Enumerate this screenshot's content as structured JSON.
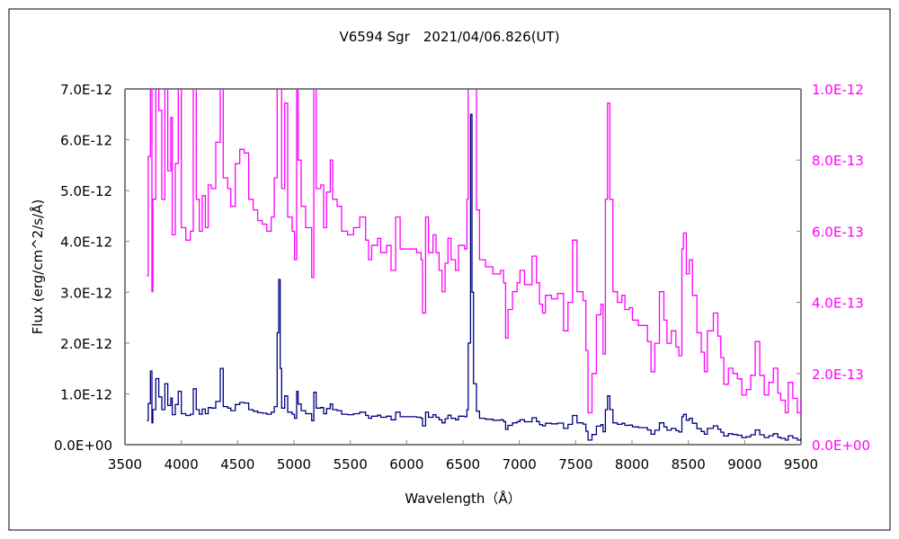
{
  "chart_data": {
    "type": "line",
    "title": "V6594 Sgr　2021/04/06.826(UT)",
    "xlabel": "Wavelength（Å）",
    "ylabel": "Flux (erg/cm^2/s/Å)",
    "xlim": [
      3500,
      9500
    ],
    "ylim_left": [
      0,
      7e-12
    ],
    "ylim_right": [
      0,
      1e-12
    ],
    "x_tick_labels": [
      "3500",
      "4000",
      "4500",
      "5000",
      "5500",
      "6000",
      "6500",
      "7000",
      "7500",
      "8000",
      "8500",
      "9000",
      "9500"
    ],
    "y_left_tick_labels": [
      "0.0E+00",
      "1.0E-12",
      "2.0E-12",
      "3.0E-12",
      "4.0E-12",
      "5.0E-12",
      "6.0E-12",
      "7.0E-12"
    ],
    "y_right_tick_labels": [
      "0.0E+00",
      "2.0E-13",
      "4.0E-13",
      "6.0E-13",
      "8.0E-13",
      "1.0E-12"
    ],
    "grid": false,
    "legend": "none",
    "colors": {
      "left_axis_series": "#000080",
      "right_axis_series": "#ff00ff",
      "right_axis_labels": "#ff00ff",
      "frame": "#808080"
    },
    "series": [
      {
        "axis": "left",
        "color": "#000080"
      },
      {
        "axis": "right",
        "color": "#ff00ff"
      }
    ],
    "x": [
      3694,
      3707,
      3726,
      3739,
      3747,
      3774,
      3800,
      3827,
      3854,
      3880,
      3907,
      3920,
      3947,
      3973,
      4000,
      4040,
      4080,
      4106,
      4133,
      4160,
      4186,
      4213,
      4239,
      4266,
      4306,
      4346,
      4372,
      4412,
      4439,
      4479,
      4519,
      4559,
      4598,
      4638,
      4678,
      4718,
      4758,
      4798,
      4825,
      4851,
      4864,
      4878,
      4891,
      4918,
      4944,
      4984,
      5005,
      5024,
      5037,
      5064,
      5104,
      5144,
      5157,
      5176,
      5197,
      5237,
      5263,
      5290,
      5322,
      5343,
      5383,
      5423,
      5476,
      5529,
      5583,
      5636,
      5662,
      5689,
      5742,
      5769,
      5822,
      5862,
      5902,
      5942,
      5982,
      6035,
      6088,
      6128,
      6141,
      6168,
      6194,
      6234,
      6261,
      6288,
      6314,
      6341,
      6367,
      6394,
      6434,
      6460,
      6514,
      6535,
      6546,
      6567,
      6580,
      6593,
      6620,
      6647,
      6700,
      6766,
      6780,
      6833,
      6860,
      6878,
      6900,
      6940,
      6980,
      7006,
      7046,
      7086,
      7113,
      7152,
      7179,
      7206,
      7232,
      7285,
      7339,
      7392,
      7432,
      7472,
      7512,
      7565,
      7591,
      7610,
      7645,
      7684,
      7724,
      7743,
      7764,
      7783,
      7804,
      7831,
      7871,
      7911,
      7937,
      7977,
      8004,
      8057,
      8110,
      8137,
      8169,
      8203,
      8243,
      8283,
      8310,
      8349,
      8389,
      8416,
      8443,
      8456,
      8482,
      8509,
      8536,
      8576,
      8615,
      8642,
      8669,
      8722,
      8762,
      8788,
      8815,
      8855,
      8895,
      8935,
      8975,
      9014,
      9054,
      9094,
      9134,
      9174,
      9214,
      9254,
      9294,
      9320,
      9360,
      9387,
      9427,
      9467,
      9500
    ],
    "y": [
      4.75e-13,
      8.1e-13,
      1.45e-12,
      4.3e-13,
      6.9e-13,
      1.3e-12,
      9.4e-13,
      6.9e-13,
      1.2e-12,
      7.7e-13,
      9.2e-13,
      5.9e-13,
      7.9e-13,
      1.05e-12,
      6.1e-13,
      5.75e-13,
      6e-13,
      1.1e-12,
      6.9e-13,
      6e-13,
      7e-13,
      6.1e-13,
      7.3e-13,
      7.2e-13,
      8.5e-13,
      1.5e-12,
      7.5e-13,
      7.2e-13,
      6.7e-13,
      7.9e-13,
      8.3e-13,
      8.2e-13,
      6.9e-13,
      6.6e-13,
      6.3e-13,
      6.2e-13,
      6e-13,
      6.4e-13,
      7.5e-13,
      2.2e-12,
      3.25e-12,
      1.5e-12,
      7.2e-13,
      9.6e-13,
      6.4e-13,
      6e-13,
      5.2e-13,
      1.05e-12,
      8e-13,
      6.7e-13,
      6.1e-13,
      6.1e-13,
      4.7e-13,
      1.03e-12,
      7.2e-13,
      7.3e-13,
      6.1e-13,
      7.1e-13,
      8e-13,
      6.9e-13,
      6.7e-13,
      6e-13,
      5.9e-13,
      6.1e-13,
      6.4e-13,
      5.75e-13,
      5.2e-13,
      5.6e-13,
      5.8e-13,
      5.4e-13,
      5.6e-13,
      4.9e-13,
      6.4e-13,
      5.5e-13,
      5.5e-13,
      5.5e-13,
      5.4e-13,
      5.2e-13,
      3.7e-13,
      6.4e-13,
      5.4e-13,
      5.9e-13,
      5.4e-13,
      4.9e-13,
      4.3e-13,
      5.1e-13,
      5.8e-13,
      5.2e-13,
      4.9e-13,
      5.6e-13,
      5.5e-13,
      6.9e-13,
      2e-12,
      6.5e-12,
      3e-12,
      1.2e-12,
      6.6e-13,
      5.2e-13,
      5e-13,
      4.8e-13,
      4.8e-13,
      4.9e-13,
      4.55e-13,
      3e-13,
      3.8e-13,
      4.3e-13,
      4.55e-13,
      4.9e-13,
      4.5e-13,
      4.5e-13,
      5.3e-13,
      4.55e-13,
      3.95e-13,
      3.7e-13,
      4.2e-13,
      4.1e-13,
      4.25e-13,
      3.2e-13,
      4e-13,
      5.75e-13,
      4.3e-13,
      4.05e-13,
      2.65e-13,
      9e-14,
      2e-13,
      3.65e-13,
      3.95e-13,
      2.55e-13,
      6.9e-13,
      9.6e-13,
      6.9e-13,
      4.3e-13,
      4e-13,
      4.2e-13,
      3.8e-13,
      3.85e-13,
      3.5e-13,
      3.35e-13,
      3.35e-13,
      2.9e-13,
      2.05e-13,
      2.85e-13,
      4.3e-13,
      3.5e-13,
      2.85e-13,
      3.2e-13,
      2.75e-13,
      2.5e-13,
      5.5e-13,
      5.95e-13,
      4.8e-13,
      5.2e-13,
      4.2e-13,
      3.15e-13,
      2.6e-13,
      2.05e-13,
      3.2e-13,
      3.7e-13,
      3.05e-13,
      2.45e-13,
      1.7e-13,
      2.15e-13,
      2e-13,
      1.85e-13,
      1.4e-13,
      1.55e-13,
      1.95e-13,
      2.9e-13,
      1.95e-13,
      1.4e-13,
      1.75e-13,
      2.15e-13,
      1.45e-13,
      1.25e-13,
      9e-14,
      1.75e-13,
      1.3e-13,
      9e-14,
      1.25e-13
    ]
  }
}
